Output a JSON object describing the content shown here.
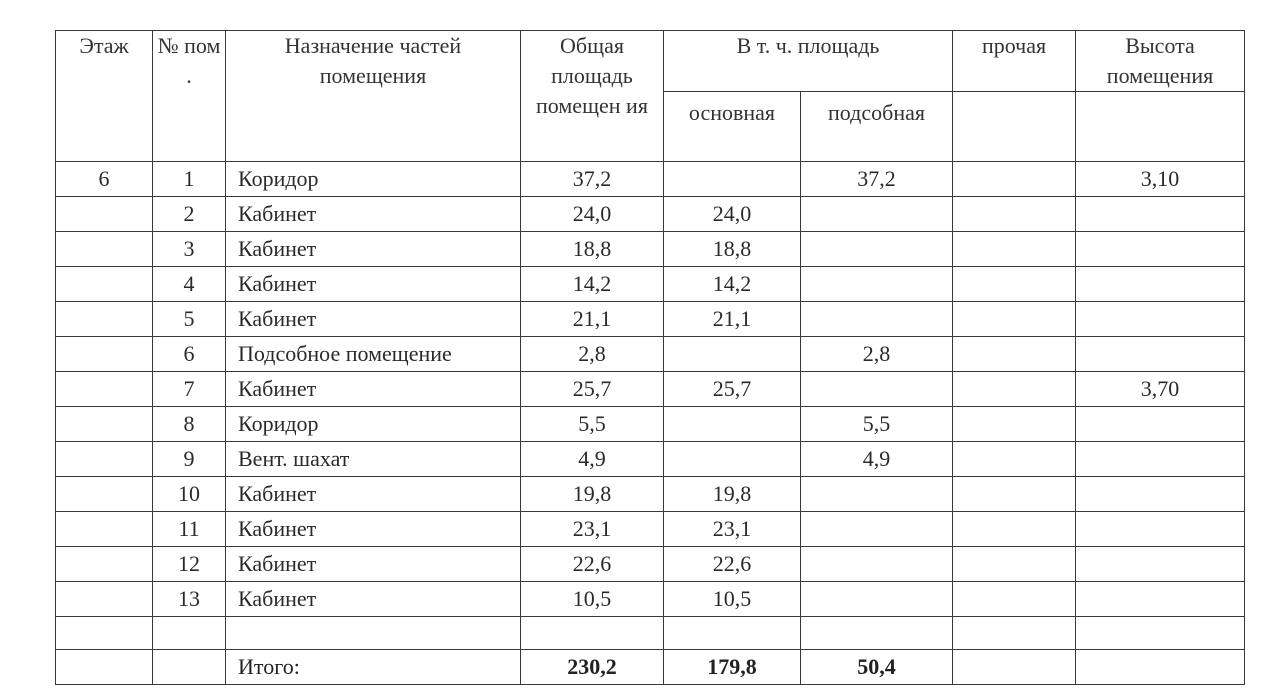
{
  "header": {
    "floor": "Этаж",
    "room_no": "№ пом .",
    "purpose": "Назначение частей помещения",
    "total_area": "Общая площадь помещен ия",
    "incl_area": "В т. ч. площадь",
    "main": "основная",
    "auxiliary": "подсобная",
    "other": "прочая",
    "height": "Высота помещения"
  },
  "rows": [
    {
      "floor": "6",
      "no": "1",
      "name": "Коридор",
      "total": "37,2",
      "main": "",
      "aux": "37,2",
      "other": "",
      "height": "3,10"
    },
    {
      "floor": "",
      "no": "2",
      "name": "Кабинет",
      "total": "24,0",
      "main": "24,0",
      "aux": "",
      "other": "",
      "height": ""
    },
    {
      "floor": "",
      "no": "3",
      "name": "Кабинет",
      "total": "18,8",
      "main": "18,8",
      "aux": "",
      "other": "",
      "height": ""
    },
    {
      "floor": "",
      "no": "4",
      "name": "Кабинет",
      "total": "14,2",
      "main": "14,2",
      "aux": "",
      "other": "",
      "height": ""
    },
    {
      "floor": "",
      "no": "5",
      "name": "Кабинет",
      "total": "21,1",
      "main": "21,1",
      "aux": "",
      "other": "",
      "height": ""
    },
    {
      "floor": "",
      "no": "6",
      "name": "Подсобное помещение",
      "total": "2,8",
      "main": "",
      "aux": "2,8",
      "other": "",
      "height": ""
    },
    {
      "floor": "",
      "no": "7",
      "name": "Кабинет",
      "total": "25,7",
      "main": "25,7",
      "aux": "",
      "other": "",
      "height": "3,70"
    },
    {
      "floor": "",
      "no": "8",
      "name": "Коридор",
      "total": "5,5",
      "main": "",
      "aux": "5,5",
      "other": "",
      "height": ""
    },
    {
      "floor": "",
      "no": "9",
      "name": "Вент. шахат",
      "total": "4,9",
      "main": "",
      "aux": "4,9",
      "other": "",
      "height": ""
    },
    {
      "floor": "",
      "no": "10",
      "name": "Кабинет",
      "total": "19,8",
      "main": "19,8",
      "aux": "",
      "other": "",
      "height": ""
    },
    {
      "floor": "",
      "no": "11",
      "name": "Кабинет",
      "total": "23,1",
      "main": "23,1",
      "aux": "",
      "other": "",
      "height": ""
    },
    {
      "floor": "",
      "no": "12",
      "name": "Кабинет",
      "total": "22,6",
      "main": "22,6",
      "aux": "",
      "other": "",
      "height": ""
    },
    {
      "floor": "",
      "no": "13",
      "name": "Кабинет",
      "total": "10,5",
      "main": "10,5",
      "aux": "",
      "other": "",
      "height": ""
    }
  ],
  "total_row": {
    "label": "Итого:",
    "total": "230,2",
    "main": "179,8",
    "aux": "50,4"
  }
}
